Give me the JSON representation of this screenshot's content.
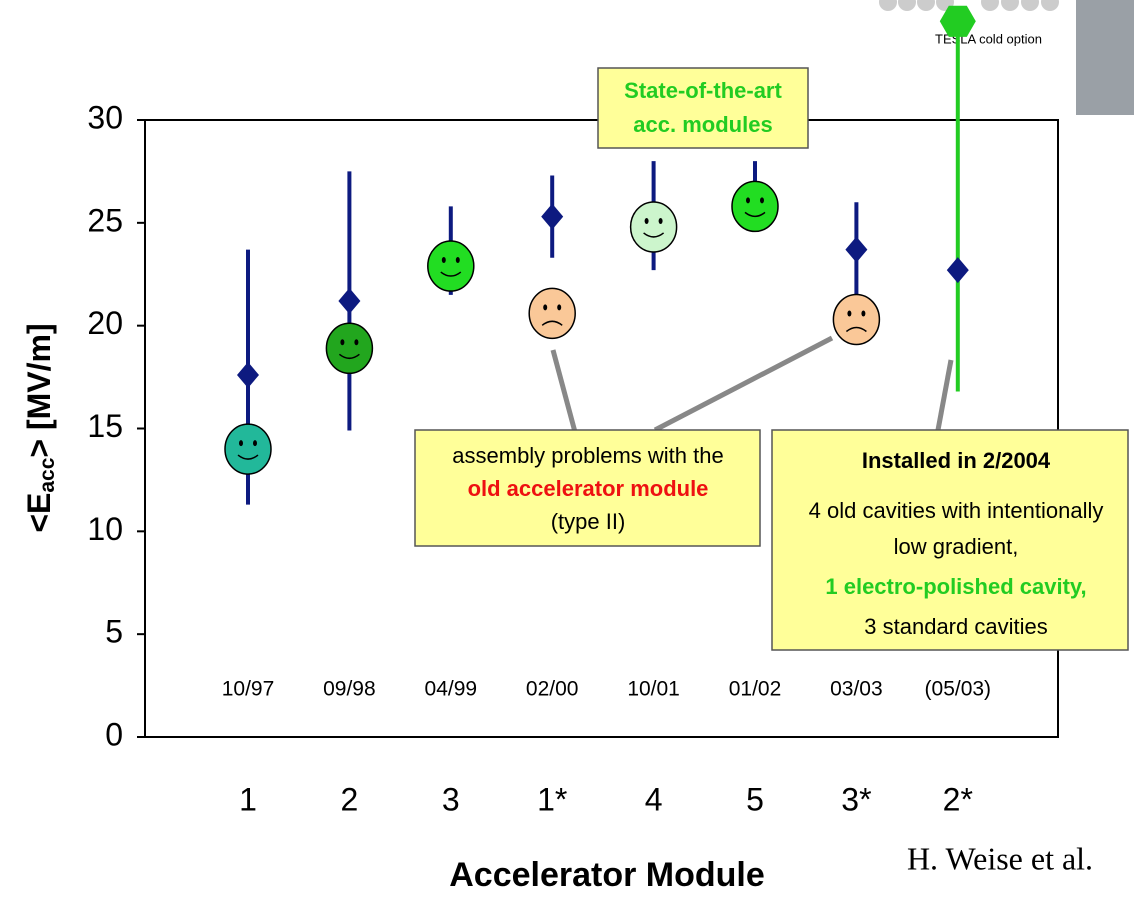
{
  "chart_data": {
    "type": "errorbar",
    "y_label": "<E",
    "y_label_sub": "acc",
    "y_label_end": "> [MV/m]",
    "x_label": "Accelerator Module",
    "categories": [
      "1",
      "2",
      "3",
      "1*",
      "4",
      "5",
      "3*",
      "2*"
    ],
    "dates": [
      "10/97",
      "09/98",
      "04/99",
      "02/00",
      "10/01",
      "01/02",
      "03/03",
      "(05/03)"
    ],
    "ylim": [
      0,
      30
    ],
    "yticks": [
      0,
      5,
      10,
      15,
      20,
      25,
      30
    ],
    "series": [
      {
        "values": [
          17.6,
          21.2,
          23.6,
          25.3,
          25.3,
          26.5,
          23.7,
          22.7
        ],
        "color": "#0d1a80",
        "low": [
          11.3,
          14.9,
          21.5,
          23.3,
          22.7,
          25.0,
          21.5,
          16.8
        ],
        "high": [
          23.7,
          27.5,
          25.8,
          27.3,
          28.0,
          28.0,
          26.0,
          34.8
        ],
        "bar_colors": [
          "#0d1a80",
          "#0d1a80",
          "#0d1a80",
          "#0d1a80",
          "#0d1a80",
          "#0d1a80",
          "#0d1a80",
          "#22cc22"
        ]
      },
      {
        "values": [
          14.0,
          18.9,
          22.9,
          20.6,
          24.8,
          25.8,
          20.3,
          null
        ],
        "colors": [
          "#22b89a",
          "#22a61e",
          "#22dd22",
          "#fac898",
          "#ccf5cc",
          "#22dd22",
          "#fac898",
          null
        ],
        "moods": [
          "happy",
          "happy",
          "happy",
          "sad",
          "happy",
          "happy",
          "sad",
          null
        ]
      }
    ],
    "annotations": [
      {
        "lines": [
          "State-of-the-art",
          "acc. modules"
        ]
      },
      {
        "lines": [
          "assembly problems with the",
          "old accelerator module",
          "(type II)"
        ]
      },
      {
        "lines": [
          "Installed in 2/2004",
          "4 old cavities with intentionally",
          "low gradient,",
          "1 electro-polished cavity,",
          "3 standard cavities"
        ]
      }
    ],
    "inset_label": "TESLA cold option",
    "credit": "H. Weise et al."
  }
}
